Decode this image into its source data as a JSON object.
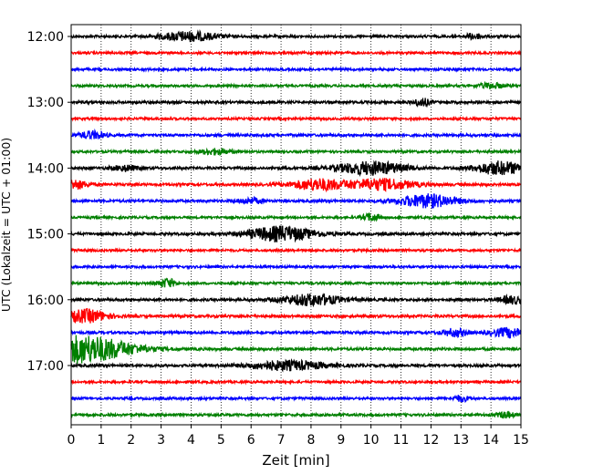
{
  "chart_data": {
    "type": "line",
    "xlabel": "Zeit  [min]",
    "ylabel": "UTC (Lokalzeit = UTC + 01:00)",
    "xlim": [
      0,
      15
    ],
    "x_ticks": [
      "0",
      "1",
      "2",
      "3",
      "4",
      "5",
      "6",
      "7",
      "8",
      "9",
      "10",
      "11",
      "12",
      "13",
      "14",
      "15"
    ],
    "y_ticks": [
      {
        "label": "12:00",
        "row": 0
      },
      {
        "label": "13:00",
        "row": 4
      },
      {
        "label": "14:00",
        "row": 8
      },
      {
        "label": "15:00",
        "row": 12
      },
      {
        "label": "16:00",
        "row": 16
      },
      {
        "label": "17:00",
        "row": 20
      }
    ],
    "grid": "vertical-dotted",
    "colors": [
      "#000000",
      "#ff0000",
      "#0000ff",
      "#008000"
    ],
    "traces": [
      {
        "start": "12:00",
        "color": "#000000",
        "noise": 0.9,
        "events": [
          [
            3.9,
            0.7,
            5
          ],
          [
            13.4,
            0.2,
            3
          ]
        ]
      },
      {
        "start": "12:15",
        "color": "#ff0000",
        "noise": 0.9,
        "events": []
      },
      {
        "start": "12:30",
        "color": "#0000ff",
        "noise": 0.9,
        "events": []
      },
      {
        "start": "12:45",
        "color": "#008000",
        "noise": 0.9,
        "events": [
          [
            14.0,
            0.3,
            3
          ]
        ]
      },
      {
        "start": "13:00",
        "color": "#000000",
        "noise": 1.0,
        "events": [
          [
            11.7,
            0.2,
            4
          ]
        ]
      },
      {
        "start": "13:15",
        "color": "#ff0000",
        "noise": 0.9,
        "events": []
      },
      {
        "start": "13:30",
        "color": "#0000ff",
        "noise": 1.0,
        "events": [
          [
            0.7,
            0.3,
            4
          ]
        ]
      },
      {
        "start": "13:45",
        "color": "#008000",
        "noise": 0.9,
        "events": [
          [
            4.8,
            0.4,
            3
          ]
        ]
      },
      {
        "start": "14:00",
        "color": "#000000",
        "noise": 1.0,
        "events": [
          [
            1.8,
            0.3,
            3
          ],
          [
            10.0,
            0.8,
            7
          ],
          [
            14.3,
            0.6,
            7
          ]
        ]
      },
      {
        "start": "14:15",
        "color": "#ff0000",
        "noise": 1.0,
        "events": [
          [
            0.1,
            0.3,
            5
          ],
          [
            8.2,
            0.6,
            6
          ],
          [
            10.3,
            0.8,
            6
          ]
        ]
      },
      {
        "start": "14:30",
        "color": "#0000ff",
        "noise": 1.0,
        "events": [
          [
            6.0,
            0.3,
            3
          ],
          [
            11.9,
            0.7,
            7
          ]
        ]
      },
      {
        "start": "14:45",
        "color": "#008000",
        "noise": 0.9,
        "events": [
          [
            10.0,
            0.2,
            4
          ]
        ]
      },
      {
        "start": "15:00",
        "color": "#000000",
        "noise": 1.0,
        "events": [
          [
            7.0,
            0.8,
            8
          ]
        ]
      },
      {
        "start": "15:15",
        "color": "#ff0000",
        "noise": 0.9,
        "events": []
      },
      {
        "start": "15:30",
        "color": "#0000ff",
        "noise": 0.9,
        "events": []
      },
      {
        "start": "15:45",
        "color": "#008000",
        "noise": 0.9,
        "events": [
          [
            3.2,
            0.2,
            5
          ]
        ]
      },
      {
        "start": "16:00",
        "color": "#000000",
        "noise": 1.0,
        "events": [
          [
            8.0,
            0.7,
            6
          ],
          [
            14.7,
            0.3,
            4
          ]
        ]
      },
      {
        "start": "16:15",
        "color": "#ff0000",
        "noise": 1.0,
        "events": [
          [
            0.5,
            0.5,
            7
          ]
        ]
      },
      {
        "start": "16:30",
        "color": "#0000ff",
        "noise": 1.0,
        "events": [
          [
            12.8,
            0.3,
            4
          ],
          [
            14.6,
            0.4,
            5
          ]
        ]
      },
      {
        "start": "16:45",
        "color": "#008000",
        "noise": 1.0,
        "events": [
          [
            0.3,
            1.2,
            15
          ]
        ]
      },
      {
        "start": "17:00",
        "color": "#000000",
        "noise": 1.0,
        "events": [
          [
            7.2,
            0.9,
            5
          ]
        ]
      },
      {
        "start": "17:15",
        "color": "#ff0000",
        "noise": 0.9,
        "events": []
      },
      {
        "start": "17:30",
        "color": "#0000ff",
        "noise": 0.9,
        "events": [
          [
            13.0,
            0.2,
            3
          ]
        ]
      },
      {
        "start": "17:45",
        "color": "#008000",
        "noise": 1.0,
        "events": [
          [
            14.5,
            0.2,
            3
          ]
        ]
      }
    ]
  }
}
